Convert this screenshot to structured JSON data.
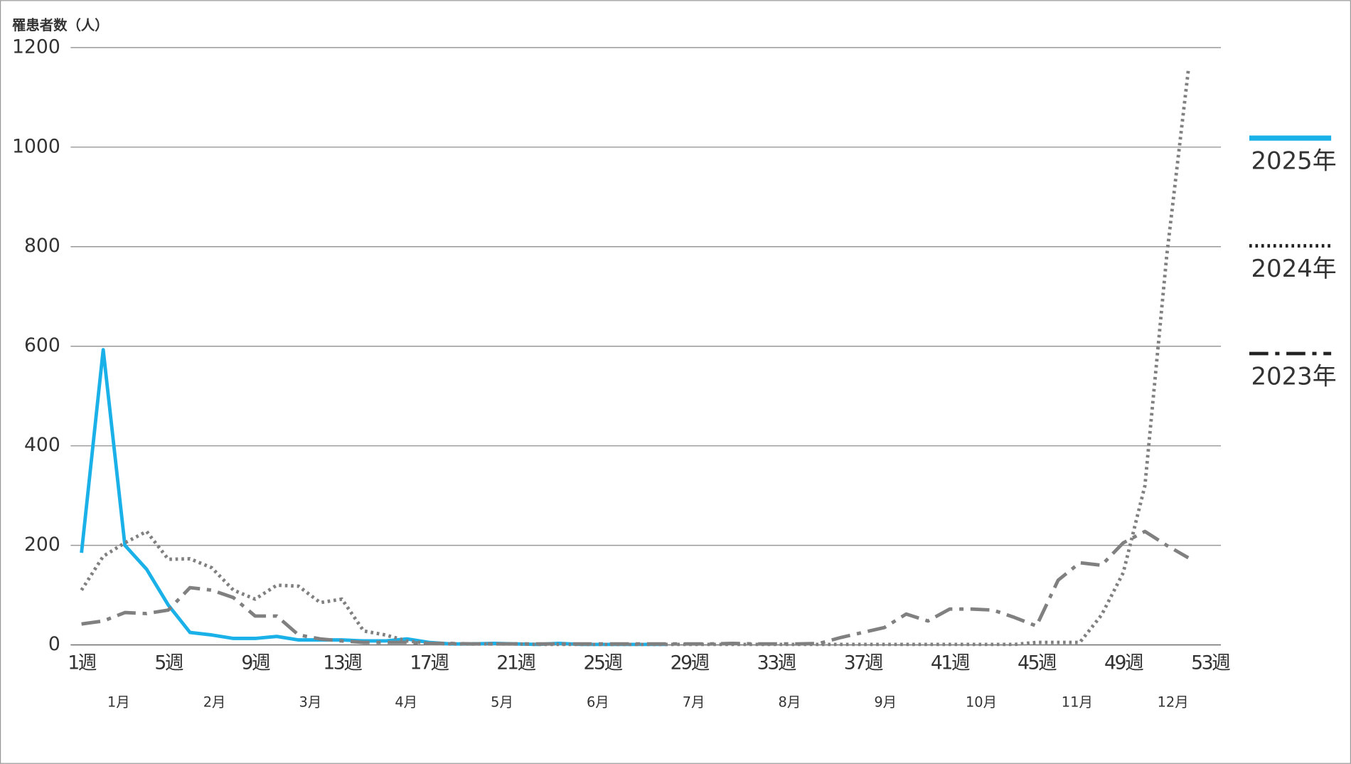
{
  "chart_data": {
    "type": "line",
    "y_label": "罹患者数（人）",
    "categories": [
      "1週",
      null,
      null,
      null,
      "5週",
      null,
      null,
      null,
      "9週",
      null,
      null,
      null,
      "13週",
      null,
      null,
      null,
      "17週",
      null,
      null,
      null,
      "21週",
      null,
      null,
      null,
      "25週",
      null,
      null,
      null,
      "29週",
      null,
      null,
      null,
      "33週",
      null,
      null,
      null,
      "37週",
      null,
      null,
      null,
      "41週",
      null,
      null,
      null,
      "45週",
      null,
      null,
      null,
      "49週",
      null,
      null,
      null,
      "53週"
    ],
    "months": [
      "1月",
      "2月",
      "3月",
      "4月",
      "5月",
      "6月",
      "7月",
      "8月",
      "9月",
      "10月",
      "11月",
      "12月"
    ],
    "ylim": [
      0,
      1200
    ],
    "yticks": [
      0,
      200,
      400,
      600,
      800,
      1000,
      1200
    ],
    "grid": true,
    "series": [
      {
        "name": "2025年",
        "color": "#1ab0e8",
        "dash": "solid",
        "values": [
          185,
          593,
          200,
          152,
          80,
          25,
          20,
          13,
          13,
          17,
          10,
          10,
          10,
          8,
          8,
          12,
          5,
          2,
          2,
          3,
          2,
          1,
          3,
          1,
          1,
          1,
          1,
          1,
          null,
          null,
          null,
          null,
          null,
          null,
          null,
          null,
          null,
          null,
          null,
          null,
          null,
          null,
          null,
          null,
          null,
          null,
          null,
          null,
          null,
          null,
          null,
          null,
          null
        ]
      },
      {
        "name": "2024年",
        "color": "#808080",
        "dash": "dotted",
        "values": [
          110,
          178,
          205,
          228,
          172,
          173,
          155,
          110,
          92,
          120,
          118,
          85,
          92,
          28,
          20,
          8,
          3,
          2,
          2,
          2,
          2,
          1,
          1,
          1,
          1,
          1,
          1,
          1,
          1,
          1,
          1,
          1,
          1,
          1,
          1,
          1,
          1,
          1,
          1,
          1,
          1,
          1,
          1,
          1,
          5,
          5,
          5,
          60,
          145,
          320,
          780,
          1155,
          null
        ]
      },
      {
        "name": "2023年",
        "color": "#808080",
        "dash": "dashdot",
        "values": [
          42,
          48,
          65,
          63,
          70,
          115,
          110,
          95,
          58,
          58,
          20,
          12,
          8,
          5,
          5,
          5,
          3,
          3,
          2,
          2,
          2,
          2,
          2,
          2,
          2,
          2,
          2,
          2,
          2,
          2,
          3,
          2,
          2,
          2,
          3,
          15,
          25,
          35,
          62,
          48,
          72,
          72,
          70,
          55,
          38,
          130,
          165,
          160,
          205,
          228,
          200,
          175,
          null
        ]
      }
    ]
  }
}
